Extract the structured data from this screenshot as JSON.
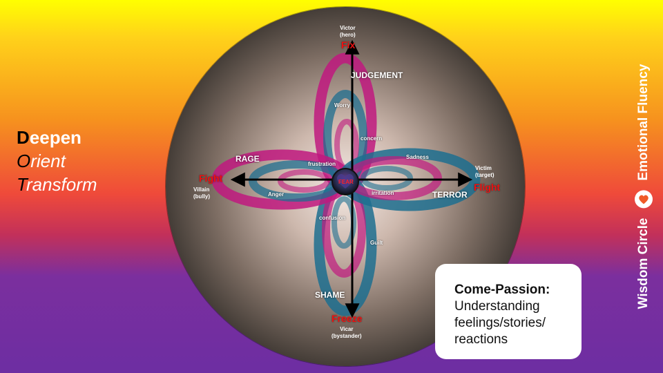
{
  "title_lines": [
    {
      "first": "D",
      "rest": "eepen"
    },
    {
      "first": "O",
      "rest": "rient"
    },
    {
      "first": "T",
      "rest": "ransform"
    }
  ],
  "diagram": {
    "center": "FEAR",
    "emotions": {
      "top": "JUDGEMENT",
      "left": "RAGE",
      "right": "TERROR",
      "bottom": "SHAME"
    },
    "feelings": {
      "worry": "Worry",
      "concern": "concern",
      "frustration": "frustration",
      "anger": "Anger",
      "sadness": "Sadness",
      "irritation": "irritation",
      "confusion": "confusion",
      "guilt": "Guilt"
    },
    "actions": {
      "top": "Fix",
      "left": "Fight",
      "right": "Flight",
      "bottom": "Freeze"
    },
    "roles": {
      "top": [
        "Victor",
        "(hero)"
      ],
      "left": [
        "Villain",
        "(bully)"
      ],
      "right": [
        "Victim",
        "(target)"
      ],
      "bottom": [
        "Vicar",
        "(bystander)"
      ]
    },
    "colors": {
      "magenta": "#c0197f",
      "teal": "#1d6e8f",
      "action": "#ee1111"
    }
  },
  "card": {
    "title": "Come-Passion:",
    "lines": [
      "Understanding",
      "feelings/stories/",
      "reactions"
    ]
  },
  "brand": {
    "name_1": "Wisdom Circle",
    "name_2": "Emotional Fluency"
  }
}
